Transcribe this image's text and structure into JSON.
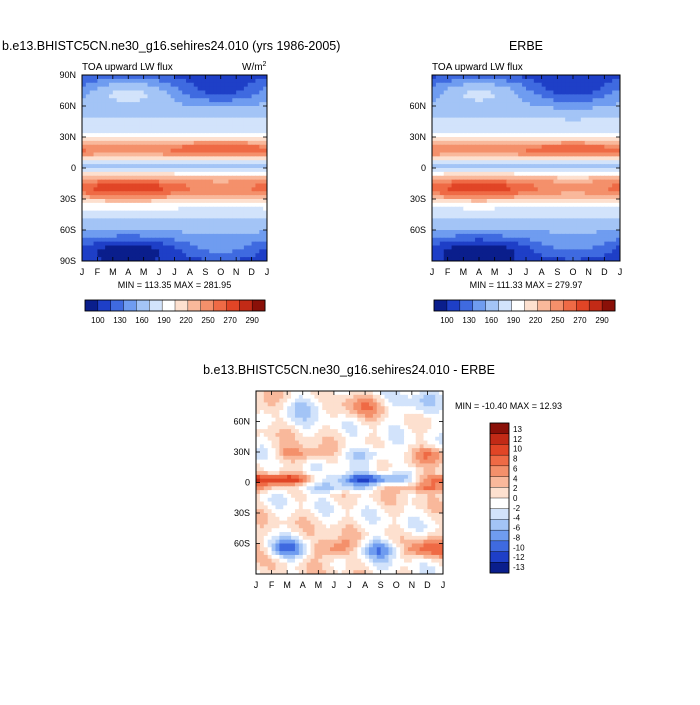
{
  "palette": [
    "#0a1e8c",
    "#1e3fc7",
    "#3f6ae0",
    "#6f9cf0",
    "#a3c4f6",
    "#d2e3fb",
    "#ffffff",
    "#fde0cf",
    "#f9b89b",
    "#f4906b",
    "#ef6a45",
    "#e14526",
    "#c22a16",
    "#8a1008"
  ],
  "chart_data": [
    {
      "type": "heatmap",
      "id": "model",
      "title": "b.e13.BHISTC5CN.ne30_g16.sehires24.010 (yrs 1986-2005)",
      "subtitle": "TOA upward LW flux",
      "units_label": "W/m",
      "units_exp": "2",
      "x_categories": [
        "J",
        "F",
        "M",
        "A",
        "M",
        "J",
        "J",
        "A",
        "S",
        "O",
        "N",
        "D",
        "J"
      ],
      "y_tick_labels": [
        "90N",
        "60N",
        "30N",
        "0",
        "30S",
        "60S",
        "90S"
      ],
      "y_tick_values": [
        90,
        60,
        30,
        0,
        -30,
        -60,
        -90
      ],
      "ylim": [
        -90,
        90
      ],
      "stats": "MIN = 113.35  MAX = 281.95",
      "colorbar_labels": [
        "100",
        "130",
        "160",
        "190",
        "220",
        "250",
        "270",
        "290"
      ]
    },
    {
      "type": "heatmap",
      "id": "obs",
      "title": "ERBE",
      "subtitle": "TOA upward LW flux",
      "x_categories": [
        "J",
        "F",
        "M",
        "A",
        "M",
        "J",
        "J",
        "A",
        "S",
        "O",
        "N",
        "D",
        "J"
      ],
      "y_tick_labels": [
        "60N",
        "30N",
        "0",
        "30S",
        "60S"
      ],
      "y_tick_values": [
        60,
        30,
        0,
        -30,
        -60
      ],
      "ylim": [
        -90,
        90
      ],
      "stats": "MIN = 111.33  MAX = 279.97",
      "colorbar_labels": [
        "100",
        "130",
        "160",
        "190",
        "220",
        "250",
        "270",
        "290"
      ]
    },
    {
      "type": "heatmap",
      "id": "diff",
      "title": "b.e13.BHISTC5CN.ne30_g16.sehires24.010 - ERBE",
      "x_categories": [
        "J",
        "F",
        "M",
        "A",
        "M",
        "J",
        "J",
        "A",
        "S",
        "O",
        "N",
        "D",
        "J"
      ],
      "y_tick_labels": [
        "60N",
        "30N",
        "0",
        "30S",
        "60S"
      ],
      "y_tick_values": [
        60,
        30,
        0,
        -30,
        -60
      ],
      "ylim": [
        -90,
        90
      ],
      "stats": "MIN = -10.40  MAX =  12.93",
      "colorbar_labels": [
        "13",
        "12",
        "10",
        "8",
        "6",
        "4",
        "2",
        "0",
        "-2",
        "-4",
        "-6",
        "-8",
        "-10",
        "-12",
        "-13"
      ]
    }
  ]
}
